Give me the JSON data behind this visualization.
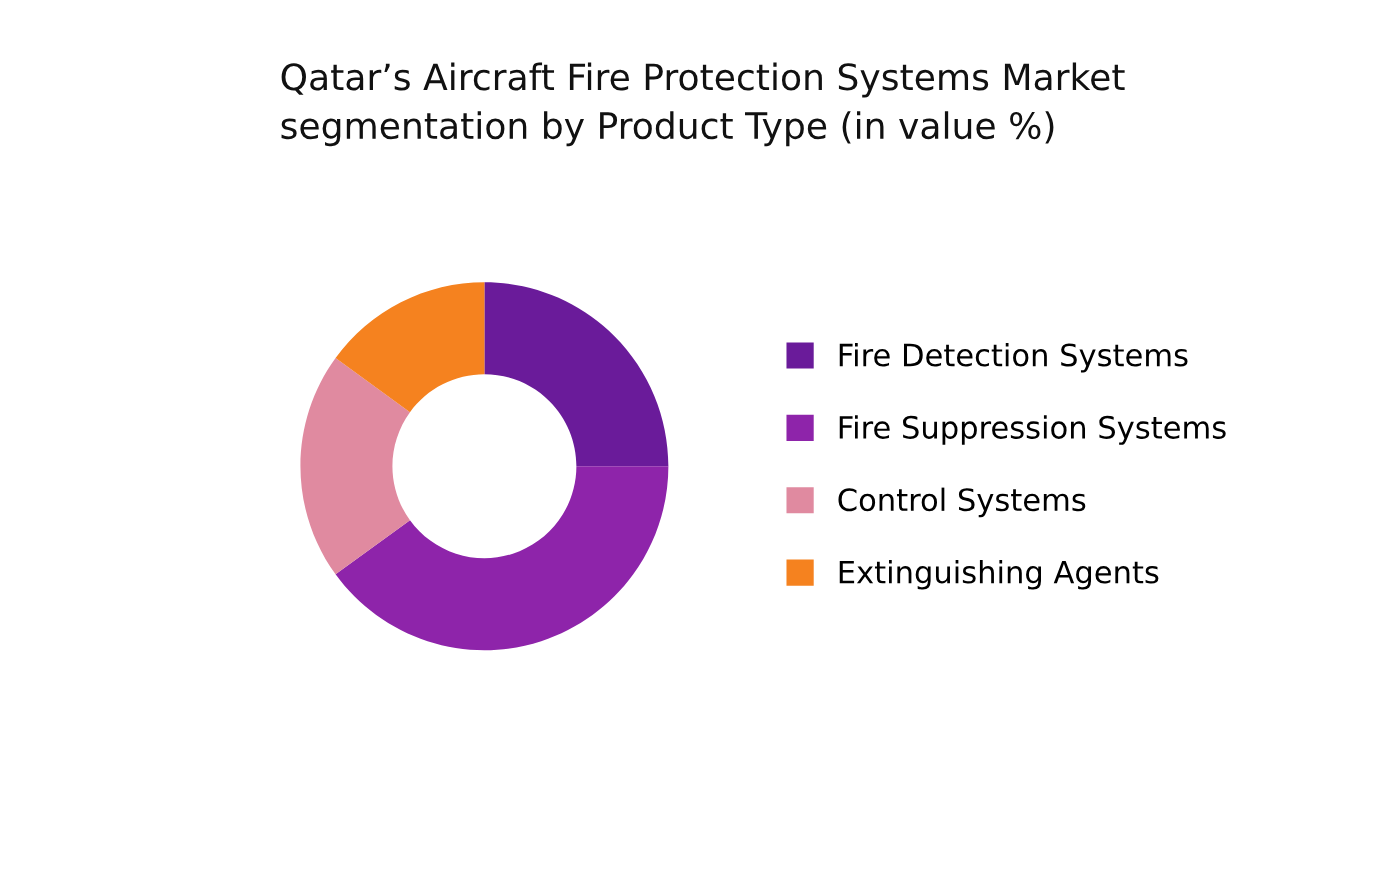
{
  "chart_data": {
    "type": "donut",
    "title": "Qatar’s Aircraft Fire Protection Systems Market\nsegmentation by Product Type (in value %)",
    "categories": [
      "Fire Detection Systems",
      "Fire Suppression Systems",
      "Control Systems",
      "Extinguishing Agents"
    ],
    "values": [
      25,
      40,
      20,
      15
    ],
    "colors": [
      "#6a1b9a",
      "#8e24aa",
      "#e08aa0",
      "#f5821f"
    ],
    "legend": "right"
  }
}
